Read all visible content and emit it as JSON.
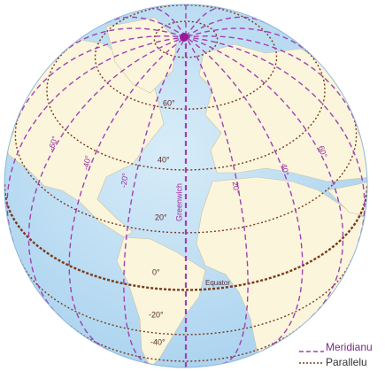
{
  "parallels": [
    "60°",
    "40°",
    "20°",
    "0°",
    "-20°",
    "-40°"
  ],
  "meridians": [
    "-60°",
    "-40°",
    "-20°",
    "Greenwich",
    "20°",
    "40°",
    "60°"
  ],
  "equator": "Equator",
  "legend": {
    "meridian": "Meridianu",
    "parallel": "Parallelu"
  }
}
